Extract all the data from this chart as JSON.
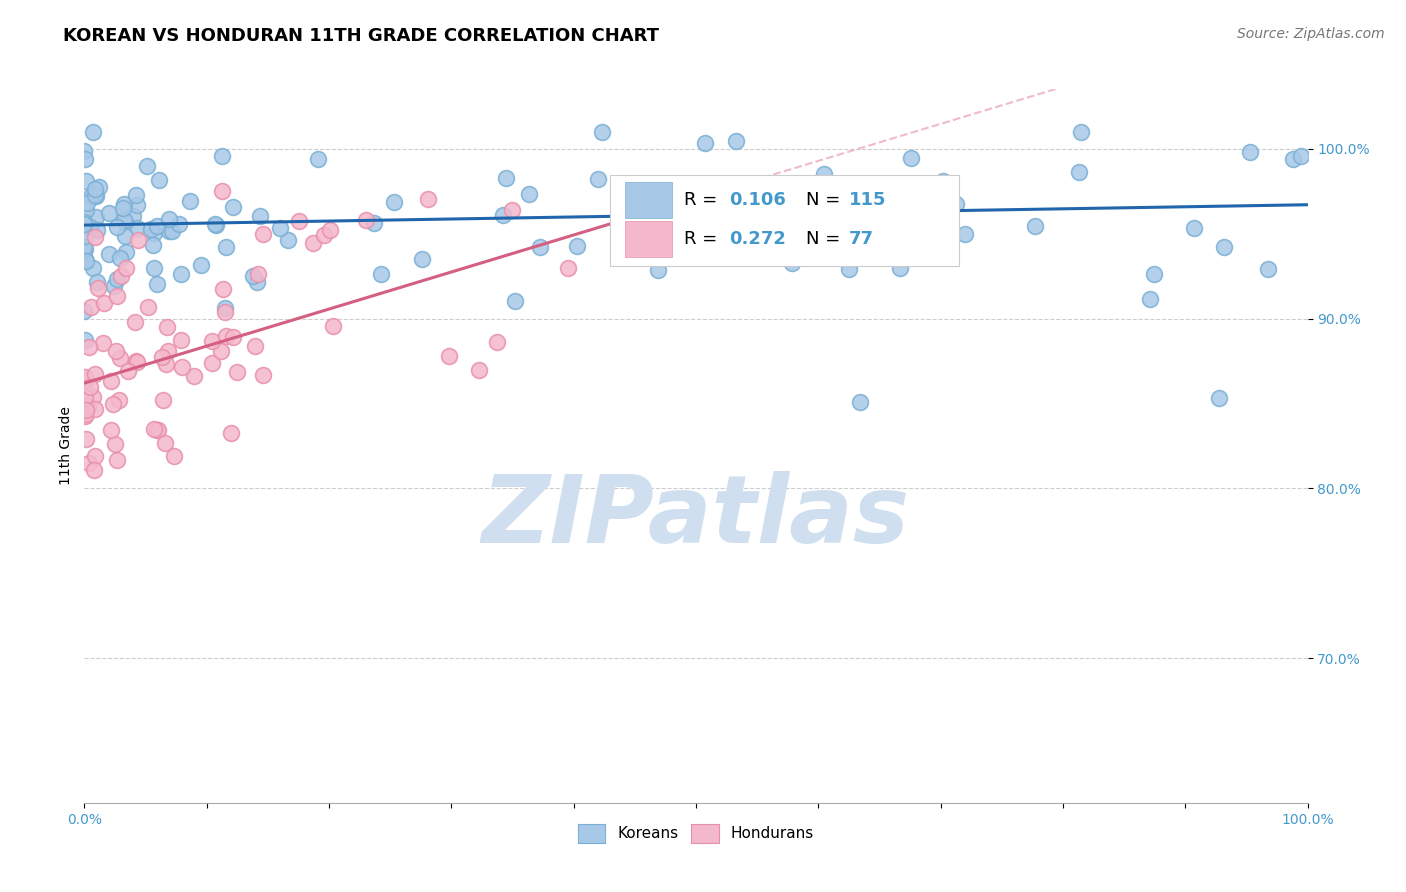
{
  "title": "KOREAN VS HONDURAN 11TH GRADE CORRELATION CHART",
  "source": "Source: ZipAtlas.com",
  "ylabel": "11th Grade",
  "ytick_labels": [
    "100.0%",
    "90.0%",
    "80.0%",
    "70.0%"
  ],
  "ytick_positions": [
    1.0,
    0.9,
    0.8,
    0.7
  ],
  "xlim": [
    0.0,
    1.0
  ],
  "ylim": [
    0.615,
    1.035
  ],
  "legend_korean": "Koreans",
  "legend_honduran": "Hondurans",
  "r_korean": "0.106",
  "n_korean": "115",
  "r_honduran": "0.272",
  "n_honduran": "77",
  "blue_color": "#a8c8e8",
  "blue_edge_color": "#7aafd4",
  "pink_color": "#f4b8cc",
  "pink_edge_color": "#e890a8",
  "blue_line_color": "#2166ac",
  "pink_line_color": "#d45f80",
  "pink_dash_color": "#e8a0b0",
  "title_fontsize": 13,
  "source_fontsize": 10,
  "label_fontsize": 10,
  "tick_fontsize": 10,
  "legend_fontsize": 11,
  "rn_fontsize": 13,
  "watermark_color": "#d0dff0",
  "background_color": "#ffffff",
  "grid_color": "#c8c8c8",
  "tick_color": "#4499cc",
  "blue_line_start_y": 0.955,
  "blue_line_slope": 0.012,
  "pink_line_start_y": 0.862,
  "pink_line_slope": 0.218,
  "pink_line_x_end": 0.52
}
